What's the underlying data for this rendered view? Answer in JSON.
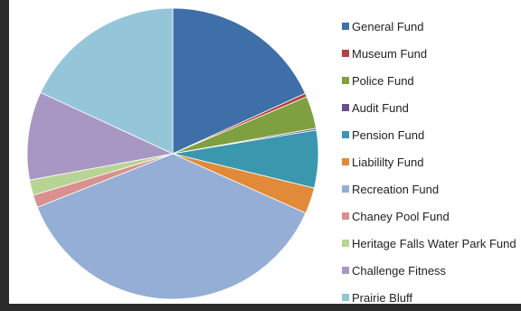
{
  "chart_data": {
    "type": "pie",
    "title": "",
    "legend_position": "right",
    "slices": [
      {
        "label": "General Fund",
        "value": 18.2,
        "color": "#3f6fa8"
      },
      {
        "label": "Museum Fund",
        "value": 0.4,
        "color": "#b0413e"
      },
      {
        "label": "Police Fund",
        "value": 3.6,
        "color": "#7fa040"
      },
      {
        "label": "Audit Fund",
        "value": 0.2,
        "color": "#6a4f8e"
      },
      {
        "label": "Pension Fund",
        "value": 6.4,
        "color": "#3a97ad"
      },
      {
        "label": "Liabililty Fund",
        "value": 2.9,
        "color": "#e08a3a"
      },
      {
        "label": "Recreation Fund",
        "value": 37.3,
        "color": "#94aed6"
      },
      {
        "label": "Chaney Pool Fund",
        "value": 1.4,
        "color": "#d9908f"
      },
      {
        "label": "Heritage Falls Water Park Fund",
        "value": 1.7,
        "color": "#b8d494"
      },
      {
        "label": "Challenge Fitness",
        "value": 9.8,
        "color": "#a897c3"
      },
      {
        "label": "Prairie Bluff",
        "value": 18.1,
        "color": "#95c5d8"
      }
    ]
  }
}
